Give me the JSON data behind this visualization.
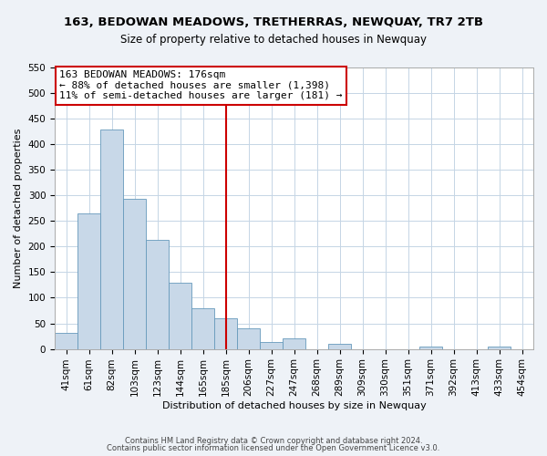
{
  "title": "163, BEDOWAN MEADOWS, TRETHERRAS, NEWQUAY, TR7 2TB",
  "subtitle": "Size of property relative to detached houses in Newquay",
  "xlabel": "Distribution of detached houses by size in Newquay",
  "ylabel": "Number of detached properties",
  "bin_labels": [
    "41sqm",
    "61sqm",
    "82sqm",
    "103sqm",
    "123sqm",
    "144sqm",
    "165sqm",
    "185sqm",
    "206sqm",
    "227sqm",
    "247sqm",
    "268sqm",
    "289sqm",
    "309sqm",
    "330sqm",
    "351sqm",
    "371sqm",
    "392sqm",
    "413sqm",
    "433sqm",
    "454sqm"
  ],
  "bar_heights": [
    32,
    265,
    428,
    293,
    214,
    130,
    79,
    59,
    40,
    14,
    20,
    0,
    10,
    0,
    0,
    0,
    4,
    0,
    0,
    4,
    0
  ],
  "bar_color": "#c8d8e8",
  "bar_edgecolor": "#6699bb",
  "vline_index": 7,
  "vline_color": "#cc0000",
  "ylim": [
    0,
    550
  ],
  "yticks": [
    0,
    50,
    100,
    150,
    200,
    250,
    300,
    350,
    400,
    450,
    500,
    550
  ],
  "annotation_line1": "163 BEDOWAN MEADOWS: 176sqm",
  "annotation_line2": "← 88% of detached houses are smaller (1,398)",
  "annotation_line3": "11% of semi-detached houses are larger (181) →",
  "footer1": "Contains HM Land Registry data © Crown copyright and database right 2024.",
  "footer2": "Contains public sector information licensed under the Open Government Licence v3.0.",
  "bg_color": "#eef2f7",
  "plot_bg_color": "#ffffff",
  "grid_color": "#c5d5e5",
  "title_fontsize": 9.5,
  "subtitle_fontsize": 8.5,
  "axis_label_fontsize": 8.0,
  "tick_fontsize": 7.5,
  "annotation_fontsize": 8.0,
  "footer_fontsize": 6.0
}
